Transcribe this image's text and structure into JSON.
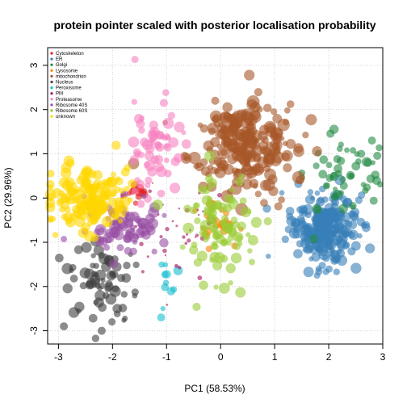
{
  "chart_data": {
    "type": "scatter",
    "title": "protein pointer scaled with posterior localisation probability",
    "xlabel": "PC1 (58.53%)",
    "ylabel": "PC2 (29.96%)",
    "xlim": [
      -3.2,
      3.0
    ],
    "ylim": [
      -3.3,
      3.4
    ],
    "xticks": [
      "-3",
      "-2",
      "-1",
      "0",
      "1",
      "2",
      "3"
    ],
    "yticks": [
      "-3",
      "-2",
      "-1",
      "0",
      "1",
      "2",
      "3"
    ],
    "grid": true,
    "legend_position": "top-left",
    "point_alpha": 0.6,
    "series": [
      {
        "name": "Cytoskeleton",
        "color": "#E41A1C",
        "cx": -1.55,
        "cy": 0.15,
        "sx": 0.12,
        "sy": 0.15,
        "n": 12,
        "r": [
          3,
          6
        ]
      },
      {
        "name": "ER",
        "color": "#377EB8",
        "cx": 1.9,
        "cy": -0.7,
        "sx": 0.3,
        "sy": 0.4,
        "n": 260,
        "r": [
          3,
          7
        ]
      },
      {
        "name": "Golgi",
        "color": "#238B45",
        "cx": 2.2,
        "cy": 0.5,
        "sx": 0.45,
        "sy": 0.5,
        "n": 55,
        "r": [
          3,
          6
        ]
      },
      {
        "name": "Lysosome",
        "color": "#FF7F00",
        "cx": -0.1,
        "cy": -0.55,
        "sx": 0.2,
        "sy": 0.2,
        "n": 25,
        "r": [
          3,
          6
        ]
      },
      {
        "name": "mitochondrion",
        "color": "#A65628",
        "cx": 0.4,
        "cy": 1.2,
        "sx": 0.5,
        "sy": 0.5,
        "n": 240,
        "r": [
          3,
          8
        ]
      },
      {
        "name": "Nucleus",
        "color": "#404040",
        "cx": -2.2,
        "cy": -1.9,
        "sx": 0.35,
        "sy": 0.45,
        "n": 70,
        "r": [
          3,
          7
        ]
      },
      {
        "name": "Peroxisome",
        "color": "#17BECF",
        "cx": -1.0,
        "cy": -2.0,
        "sx": 0.1,
        "sy": 0.35,
        "n": 10,
        "r": [
          3,
          6
        ]
      },
      {
        "name": "PM",
        "color": "#A50F5A",
        "cx": -0.9,
        "cy": -0.8,
        "sx": 0.6,
        "sy": 0.5,
        "n": 40,
        "r": [
          1,
          3
        ]
      },
      {
        "name": "Proteasome",
        "color": "#F781BF",
        "cx": -1.2,
        "cy": 1.2,
        "sx": 0.25,
        "sy": 0.55,
        "n": 60,
        "r": [
          3,
          7
        ]
      },
      {
        "name": "Ribosome 40S",
        "color": "#984EA3",
        "cx": -1.8,
        "cy": -0.7,
        "sx": 0.35,
        "sy": 0.3,
        "n": 80,
        "r": [
          3,
          7
        ]
      },
      {
        "name": "Ribosome 60S",
        "color": "#99CC33",
        "cx": 0.0,
        "cy": -0.7,
        "sx": 0.35,
        "sy": 0.6,
        "n": 100,
        "r": [
          3,
          7
        ]
      },
      {
        "name": "unknown",
        "color": "#FFD700",
        "cx": -2.4,
        "cy": 0.0,
        "sx": 0.35,
        "sy": 0.35,
        "n": 180,
        "r": [
          3,
          7
        ]
      }
    ],
    "extra_points": [
      {
        "series": "Nucleus",
        "x": -2.9,
        "y": -2.9
      },
      {
        "series": "Nucleus",
        "x": -2.2,
        "y": -3.0
      },
      {
        "series": "Peroxisome",
        "x": -1.1,
        "y": -2.7
      },
      {
        "series": "Golgi",
        "x": 2.8,
        "y": 1.3
      },
      {
        "series": "Golgi",
        "x": 2.6,
        "y": 1.0
      },
      {
        "series": "Proteasome",
        "x": -1.05,
        "y": 2.15
      },
      {
        "series": "mitochondrion",
        "x": -0.1,
        "y": 2.2
      }
    ]
  }
}
